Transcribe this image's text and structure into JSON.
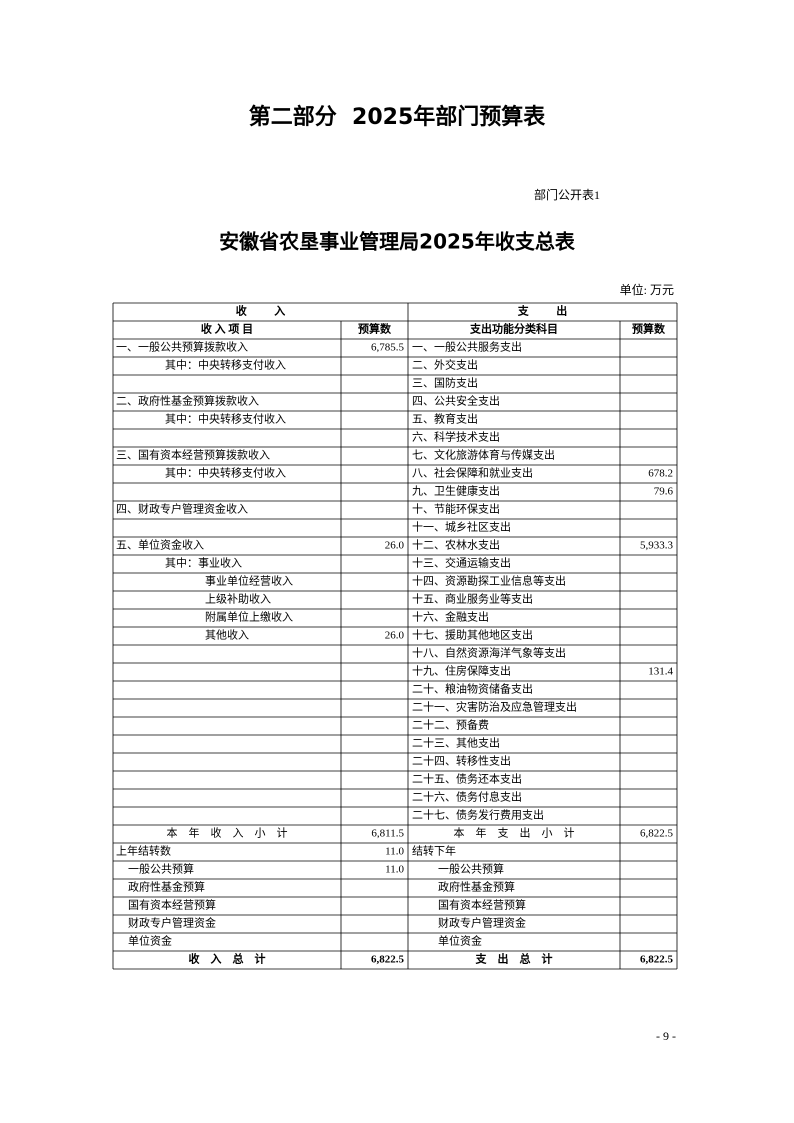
{
  "header": {
    "title": "第二部分  2025年部门预算表",
    "table_no": "部门公开表1",
    "table_title": "安徽省农垦事业管理局2025年收支总表",
    "unit": "单位: 万元",
    "page_number": "- 9 -"
  },
  "table": {
    "group_headers": [
      "收          入",
      "支          出"
    ],
    "columns": [
      "收 入 项 目",
      "预算数",
      "支出功能分类科目",
      "预算数"
    ],
    "rows": [
      [
        "一、一般公共预算拨款收入",
        "6,785.5",
        "一、一般公共服务支出",
        null
      ],
      [
        "其中：中央转移支付收入",
        null,
        "二、外交支出",
        null
      ],
      [
        null,
        null,
        "三、国防支出",
        null
      ],
      [
        "二、政府性基金预算拨款收入",
        null,
        "四、公共安全支出",
        null
      ],
      [
        "其中：中央转移支付收入",
        null,
        "五、教育支出",
        null
      ],
      [
        null,
        null,
        "六、科学技术支出",
        null
      ],
      [
        "三、国有资本经营预算拨款收入",
        null,
        "七、文化旅游体育与传媒支出",
        null
      ],
      [
        "其中：中央转移支付收入",
        null,
        "八、社会保障和就业支出",
        "678.2"
      ],
      [
        null,
        null,
        "九、卫生健康支出",
        "79.6"
      ],
      [
        "四、财政专户管理资金收入",
        null,
        "十、节能环保支出",
        null
      ],
      [
        null,
        null,
        "十一、城乡社区支出",
        null
      ],
      [
        "五、单位资金收入",
        "26.0",
        "十二、农林水支出",
        "5,933.3"
      ],
      [
        "其中：事业收入",
        null,
        "十三、交通运输支出",
        null
      ],
      [
        "事业单位经营收入",
        null,
        "十四、资源勘探工业信息等支出",
        null
      ],
      [
        "上级补助收入",
        null,
        "十五、商业服务业等支出",
        null
      ],
      [
        "附属单位上缴收入",
        null,
        "十六、金融支出",
        null
      ],
      [
        "其他收入",
        "26.0",
        "十七、援助其他地区支出",
        null
      ],
      [
        null,
        null,
        "十八、自然资源海洋气象等支出",
        null
      ],
      [
        null,
        null,
        "十九、住房保障支出",
        "131.4"
      ],
      [
        null,
        null,
        "二十、粮油物资储备支出",
        null
      ],
      [
        null,
        null,
        "二十一、灾害防治及应急管理支出",
        null
      ],
      [
        null,
        null,
        "二十二、预备费",
        null
      ],
      [
        null,
        null,
        "二十三、其他支出",
        null
      ],
      [
        null,
        null,
        "二十四、转移性支出",
        null
      ],
      [
        null,
        null,
        "二十五、债务还本支出",
        null
      ],
      [
        null,
        null,
        "二十六、债务付息支出",
        null
      ],
      [
        null,
        null,
        "二十七、债务发行费用支出",
        null
      ],
      [
        "本    年    收    入    小    计",
        "6,811.5",
        "本    年    支    出    小    计",
        "6,822.5"
      ],
      [
        "上年结转数",
        "11.0",
        "结转下年",
        null
      ],
      [
        "一般公共预算",
        "11.0",
        "一般公共预算",
        null
      ],
      [
        "政府性基金预算",
        null,
        "政府性基金预算",
        null
      ],
      [
        "国有资本经营预算",
        null,
        "国有资本经营预算",
        null
      ],
      [
        "财政专户管理资金",
        null,
        "财政专户管理资金",
        null
      ],
      [
        "单位资金",
        null,
        "单位资金",
        null
      ],
      [
        "收    入    总    计",
        "6,822.5",
        "支    出    总    计",
        "6,822.5"
      ]
    ]
  }
}
